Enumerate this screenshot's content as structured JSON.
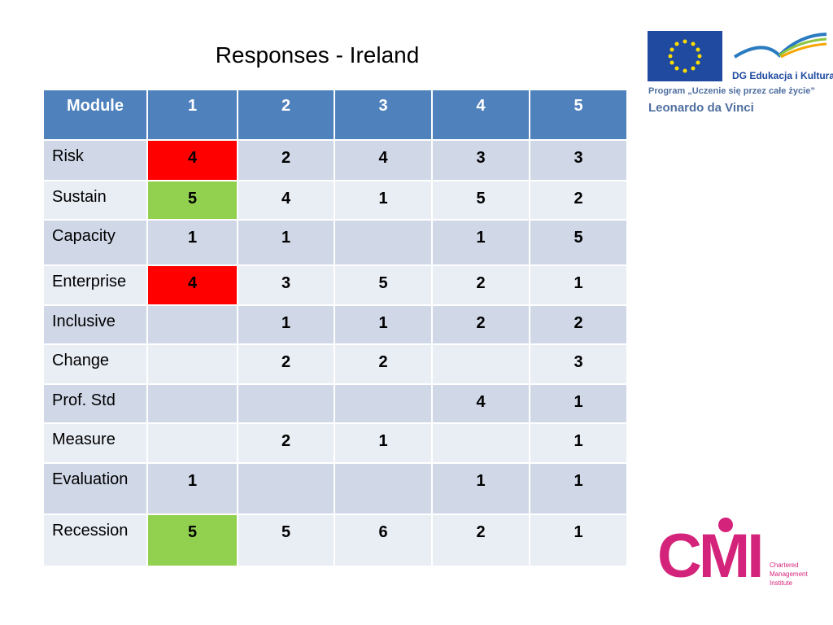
{
  "title": "Responses - Ireland",
  "table": {
    "header": [
      "Module",
      "1",
      "2",
      "3",
      "4",
      "5"
    ],
    "rows": [
      {
        "label": "Risk",
        "values": [
          4,
          2,
          4,
          3,
          3
        ]
      },
      {
        "label": "Sustain",
        "values": [
          5,
          4,
          1,
          5,
          2
        ]
      },
      {
        "label": "Capacity",
        "values": [
          1,
          1,
          null,
          1,
          5
        ]
      },
      {
        "label": "Enterprise",
        "values": [
          4,
          3,
          5,
          2,
          1
        ]
      },
      {
        "label": "Inclusive",
        "values": [
          null,
          1,
          1,
          2,
          2
        ]
      },
      {
        "label": "Change",
        "values": [
          null,
          2,
          2,
          null,
          3
        ]
      },
      {
        "label": "Prof. Std",
        "values": [
          null,
          null,
          null,
          4,
          1
        ]
      },
      {
        "label": "Measure",
        "values": [
          null,
          2,
          1,
          null,
          1
        ]
      },
      {
        "label": "Evaluation",
        "values": [
          1,
          null,
          null,
          1,
          1
        ]
      },
      {
        "label": "Recession",
        "values": [
          5,
          5,
          6,
          2,
          1
        ]
      }
    ],
    "highlights": [
      {
        "row": 0,
        "col": 0,
        "color": "#ff0000"
      },
      {
        "row": 1,
        "col": 0,
        "color": "#92d050"
      },
      {
        "row": 3,
        "col": 0,
        "color": "#ff0000"
      },
      {
        "row": 9,
        "col": 0,
        "color": "#92d050"
      }
    ]
  },
  "logos": {
    "dg": "DG Edukacja i Kultura",
    "program": "Program „Uczenie się przez całe życie”",
    "leonardo": "Leonardo da Vinci",
    "cmi": "CMI",
    "cmi_name": [
      "Chartered",
      "Management",
      "Institute"
    ]
  }
}
